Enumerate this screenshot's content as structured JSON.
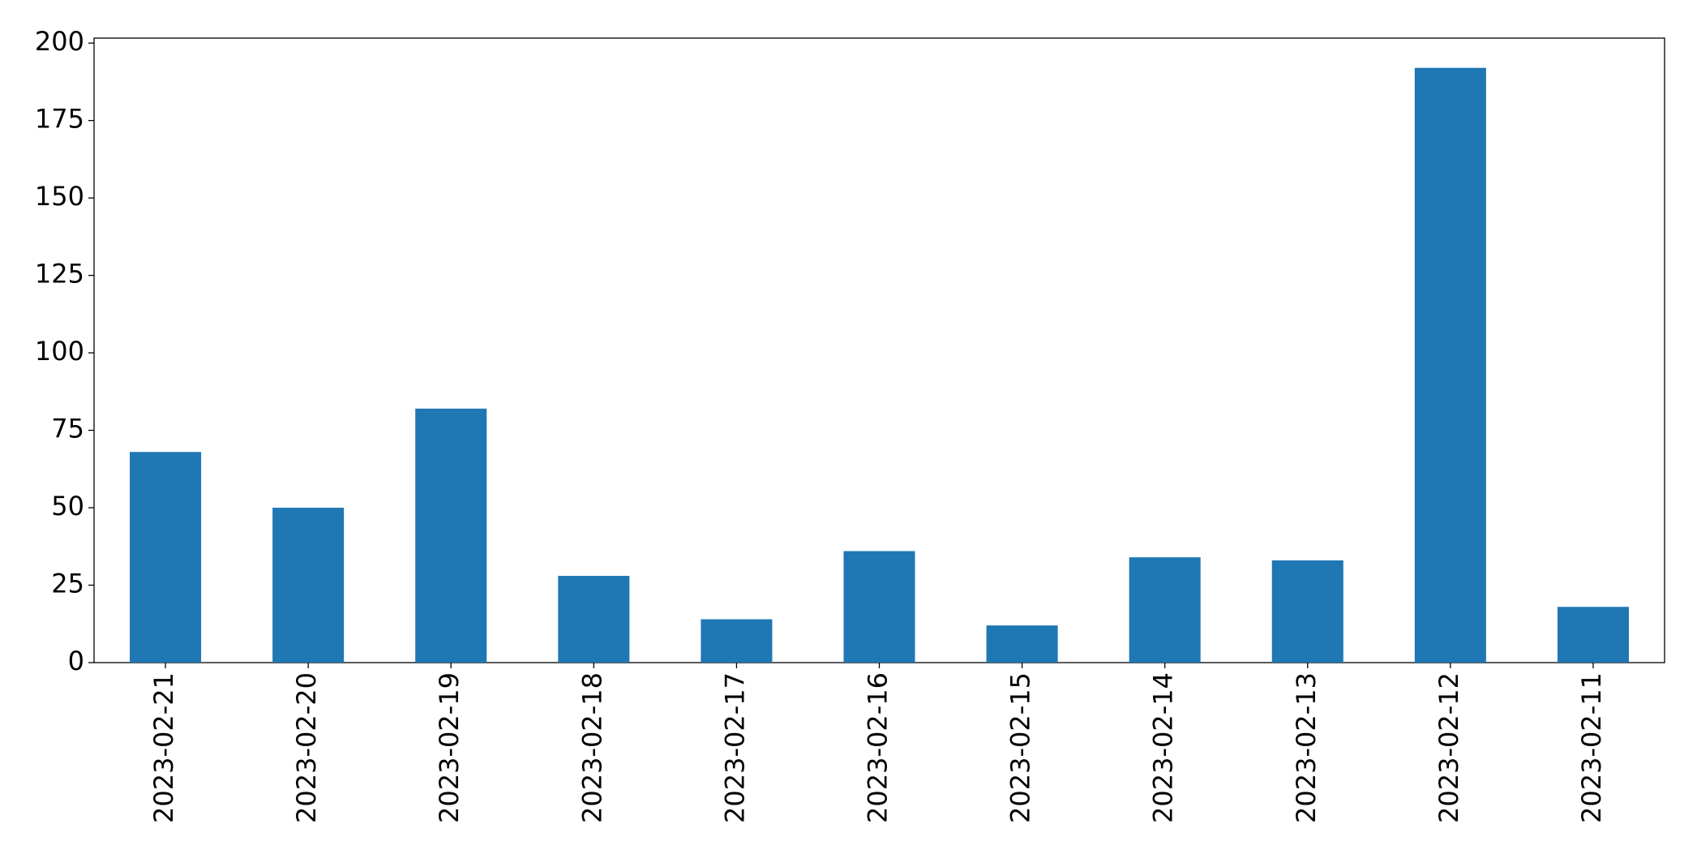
{
  "chart_data": {
    "type": "bar",
    "categories": [
      "2023-02-21",
      "2023-02-20",
      "2023-02-19",
      "2023-02-18",
      "2023-02-17",
      "2023-02-16",
      "2023-02-15",
      "2023-02-14",
      "2023-02-13",
      "2023-02-12",
      "2023-02-11"
    ],
    "values": [
      68,
      50,
      82,
      28,
      14,
      36,
      12,
      34,
      33,
      192,
      18
    ],
    "color": "#1f77b4",
    "ylim": [
      0,
      201.6
    ],
    "yticks": [
      0,
      25,
      50,
      75,
      100,
      125,
      150,
      175,
      200
    ],
    "grid": false
  }
}
